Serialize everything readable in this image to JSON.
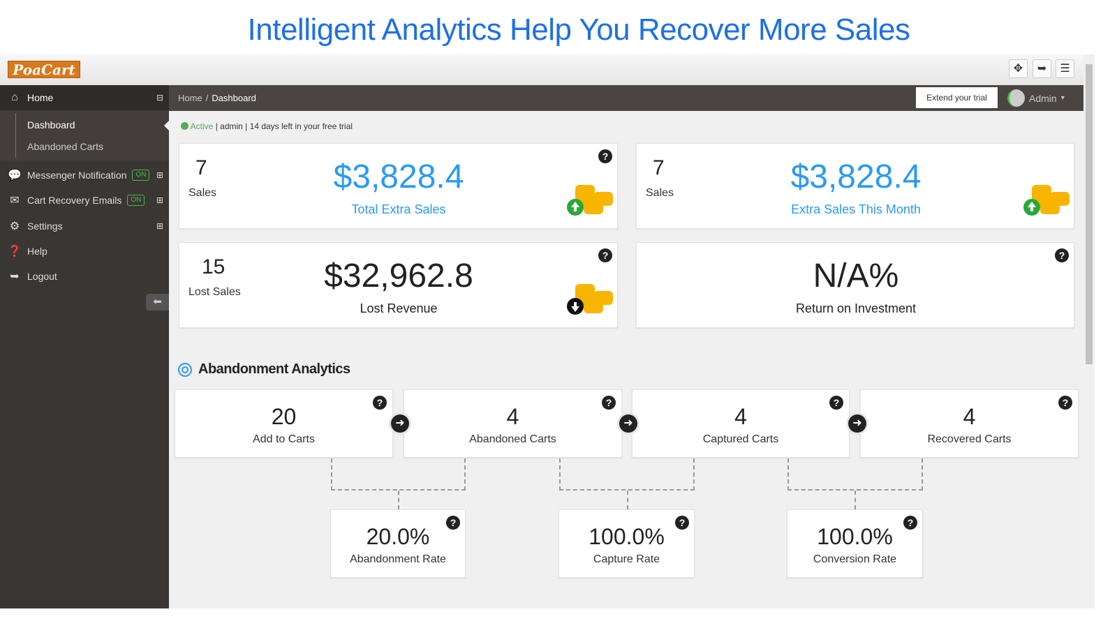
{
  "headline": "Intelligent Analytics Help You Recover More Sales",
  "logo": "PoaCart",
  "toolbar": {
    "icons": [
      "move-icon",
      "sign-out-icon",
      "menu-icon"
    ]
  },
  "sidebar": {
    "home": "Home",
    "sub": [
      "Dashboard",
      "Abandoned Carts"
    ],
    "items": [
      {
        "label": "Messenger Notification",
        "badge": "ON",
        "icon": "comment-icon"
      },
      {
        "label": "Cart Recovery Emails",
        "badge": "ON",
        "icon": "envelope-icon"
      },
      {
        "label": "Settings",
        "icon": "gear-icon"
      },
      {
        "label": "Help",
        "icon": "question-icon"
      },
      {
        "label": "Logout",
        "icon": "sign-out-icon"
      }
    ]
  },
  "breadcrumb": {
    "home": "Home",
    "sep": "/",
    "current": "Dashboard"
  },
  "header": {
    "extend": "Extend your trial",
    "user": "Admin"
  },
  "status": {
    "active": "Active",
    "user": "admin",
    "trial": "14 days left in your free trial"
  },
  "cards": [
    {
      "count": "7",
      "count_label": "Sales",
      "value": "$3,828.4",
      "label": "Total Extra Sales",
      "trend": "up"
    },
    {
      "count": "7",
      "count_label": "Sales",
      "value": "$3,828.4",
      "label": "Extra Sales This Month",
      "trend": "up"
    },
    {
      "count": "15",
      "count_label": "Lost Sales",
      "value": "$32,962.8",
      "label": "Lost Revenue",
      "trend": "down"
    },
    {
      "value": "N/A%",
      "label": "Return on Investment"
    }
  ],
  "analytics": {
    "title": "Abandonment Analytics",
    "funnel": [
      {
        "value": "20",
        "label": "Add to Carts"
      },
      {
        "value": "4",
        "label": "Abandoned Carts"
      },
      {
        "value": "4",
        "label": "Captured Carts"
      },
      {
        "value": "4",
        "label": "Recovered Carts"
      }
    ],
    "rates": [
      {
        "value": "20.0%",
        "label": "Abandonment Rate"
      },
      {
        "value": "100.0%",
        "label": "Capture Rate"
      },
      {
        "value": "100.0%",
        "label": "Conversion Rate"
      }
    ]
  },
  "colors": {
    "accent": "#2b9af3",
    "title": "#1f6fe6",
    "on": "#3cc23c",
    "logo": "#d9781c"
  }
}
